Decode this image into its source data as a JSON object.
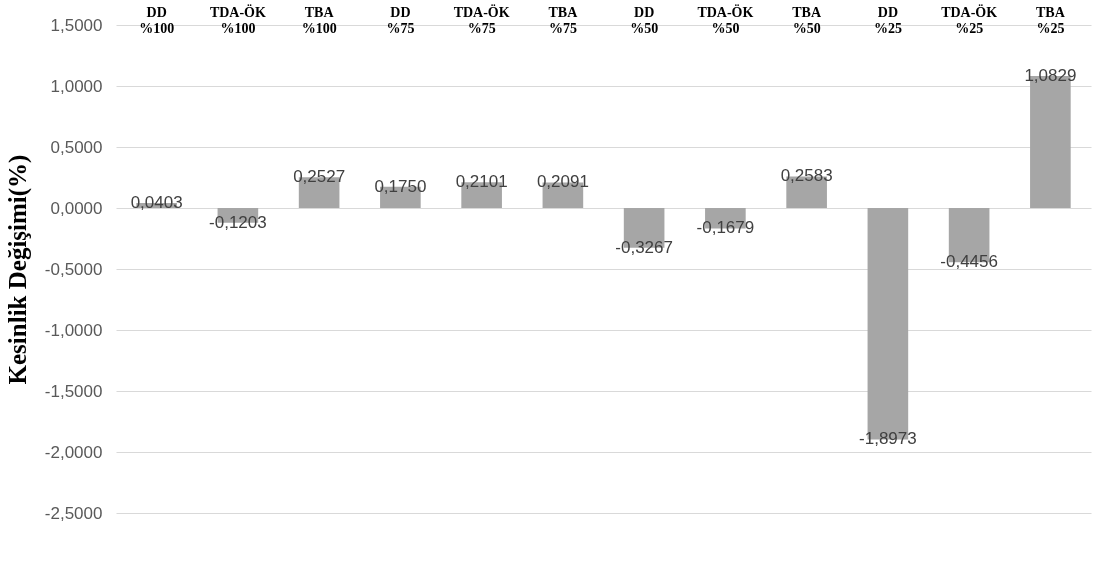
{
  "chart_data": {
    "type": "bar",
    "ylabel": "Kesinlik Değişimi(%)",
    "categories": [
      "DD %100",
      "TDA-ÖK %100",
      "TBA %100",
      "DD %75",
      "TDA-ÖK %75",
      "TBA %75",
      "DD %50",
      "TDA-ÖK %50",
      "TBA %50",
      "DD %25",
      "TDA-ÖK %25",
      "TBA %25"
    ],
    "values": [
      0.0403,
      -0.1203,
      0.2527,
      0.175,
      0.2101,
      0.2091,
      -0.3267,
      -0.1679,
      0.2583,
      -1.8973,
      -0.4456,
      1.0829
    ],
    "value_labels": [
      "0,0403",
      "-0,1203",
      "0,2527",
      "0,1750",
      "0,2101",
      "0,2091",
      "-0,3267",
      "-0,1679",
      "0,2583",
      "-1,8973",
      "-0,4456",
      "1,0829"
    ],
    "color": "#a6a6a6",
    "ylim": [
      -2.5,
      1.5
    ],
    "yticks": [
      {
        "value": -2.5,
        "label": "-2,5000"
      },
      {
        "value": -2,
        "label": "-2,0000"
      },
      {
        "value": -1.5,
        "label": "-1,5000"
      },
      {
        "value": -1,
        "label": "-1,0000"
      },
      {
        "value": -0.5,
        "label": "-0,5000"
      },
      {
        "value": 0,
        "label": "0,0000"
      },
      {
        "value": 0.5,
        "label": "0,5000"
      },
      {
        "value": 1,
        "label": "1,0000"
      },
      {
        "value": 1.5,
        "label": "1,5000"
      }
    ],
    "grid": "y"
  }
}
